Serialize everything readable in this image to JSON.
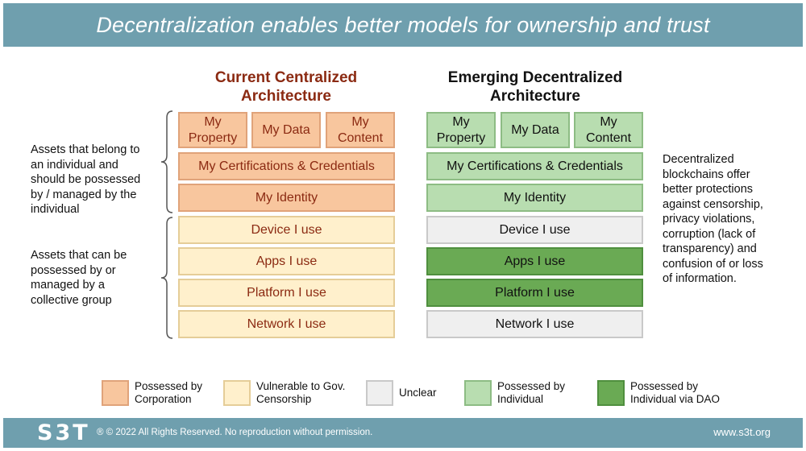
{
  "header": {
    "title": "Decentralization enables better models for ownership and trust"
  },
  "columns": {
    "left": {
      "title_line1": "Current Centralized",
      "title_line2": "Architecture",
      "top_row": [
        {
          "line1": "My",
          "line2": "Property"
        },
        {
          "label": "My Data"
        },
        {
          "line1": "My",
          "line2": "Content"
        }
      ],
      "rows": [
        "My Certifications & Credentials",
        "My Identity",
        "Device I use",
        "Apps I use",
        "Platform I use",
        "Network I use"
      ]
    },
    "right": {
      "title_line1": "Emerging Decentralized",
      "title_line2": "Architecture",
      "top_row": [
        {
          "line1": "My",
          "line2": "Property"
        },
        {
          "label": "My Data"
        },
        {
          "line1": "My",
          "line2": "Content"
        }
      ],
      "rows": [
        "My Certifications & Credentials",
        "My Identity",
        "Device I use",
        "Apps I use",
        "Platform I use",
        "Network I use"
      ]
    }
  },
  "side_notes": {
    "individual": [
      "Assets that belong to",
      "an individual and",
      "should be possessed",
      "by / managed by the",
      "individual"
    ],
    "collective": [
      "Assets that can be",
      "possessed by or",
      "managed by a",
      "collective group"
    ],
    "right": [
      "Decentralized",
      "blockchains offer",
      "better protections",
      "against censorship,",
      "privacy violations,",
      "corruption (lack of",
      "transparency) and",
      "confusion of or loss",
      "of information."
    ]
  },
  "legend": [
    {
      "line1": "Possessed by",
      "line2": "Corporation",
      "color": "#f8c69e"
    },
    {
      "line1": "Vulnerable to Gov.",
      "line2": "Censorship",
      "color": "#fff0cc"
    },
    {
      "line1": "Unclear",
      "line2": "",
      "color": "#efefef"
    },
    {
      "line1": "Possessed by",
      "line2": "Individual",
      "color": "#b8ddb0"
    },
    {
      "line1": "Possessed by",
      "line2": "Individual via DAO",
      "color": "#6aaa54"
    }
  ],
  "footer": {
    "logo": "S3T",
    "copyright": "® © 2022 All Rights Reserved. No reproduction without permission.",
    "url": "www.s3t.org"
  }
}
